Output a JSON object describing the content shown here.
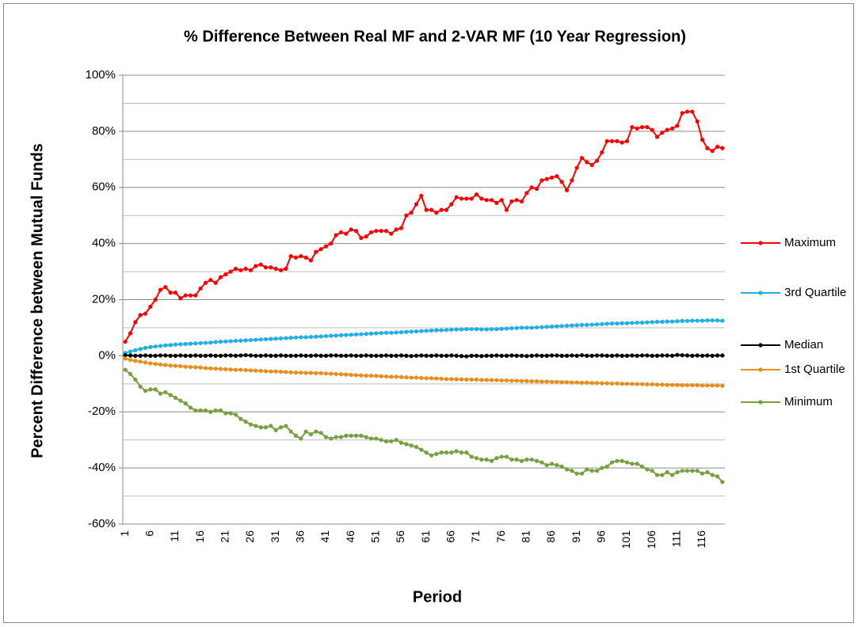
{
  "chart_data": {
    "type": "line",
    "title": "% Difference Between Real MF and 2-VAR MF (10 Year Regression)",
    "x_label": "Period",
    "y_label": "Percent Difference between Mutual Funds",
    "categories": [
      "1",
      null,
      null,
      null,
      null,
      "6",
      null,
      null,
      null,
      null,
      "11",
      null,
      null,
      null,
      null,
      "16",
      null,
      null,
      null,
      null,
      "21",
      null,
      null,
      null,
      null,
      "26",
      null,
      null,
      null,
      null,
      "31",
      null,
      null,
      null,
      null,
      "36",
      null,
      null,
      null,
      null,
      "41",
      null,
      null,
      null,
      null,
      "46",
      null,
      null,
      null,
      null,
      "51",
      null,
      null,
      null,
      null,
      "56",
      null,
      null,
      null,
      null,
      "61",
      null,
      null,
      null,
      null,
      "66",
      null,
      null,
      null,
      null,
      "71",
      null,
      null,
      null,
      null,
      "76",
      null,
      null,
      null,
      null,
      "81",
      null,
      null,
      null,
      null,
      "86",
      null,
      null,
      null,
      null,
      "91",
      null,
      null,
      null,
      null,
      "96",
      null,
      null,
      null,
      null,
      "101",
      null,
      null,
      null,
      null,
      "106",
      null,
      null,
      null,
      null,
      "111",
      null,
      null,
      null,
      null,
      "116",
      null,
      null,
      null,
      null
    ],
    "ylim": [
      -60,
      100
    ],
    "yticks": [
      {
        "value": -60,
        "label": "-60%"
      },
      {
        "value": -40,
        "label": "-40%"
      },
      {
        "value": -20,
        "label": "-20%"
      },
      {
        "value": 0,
        "label": "0%"
      },
      {
        "value": 20,
        "label": "20%"
      },
      {
        "value": 40,
        "label": "40%"
      },
      {
        "value": 60,
        "label": "60%"
      },
      {
        "value": 80,
        "label": "80%"
      },
      {
        "value": 100,
        "label": "100%"
      }
    ],
    "yminor": [
      -50,
      -30,
      -10,
      10,
      30,
      50,
      70,
      90
    ],
    "grid": true,
    "legend": "right",
    "series": [
      {
        "name": "Maximum",
        "color": "#ff0000",
        "values": [
          5,
          8,
          12,
          14.5,
          15,
          17.5,
          20,
          23.5,
          24.5,
          22.5,
          22.5,
          20.5,
          21.5,
          21.5,
          21.5,
          24,
          26,
          27,
          26,
          28,
          29,
          30,
          31,
          30.5,
          31,
          30.5,
          32,
          32.5,
          31.5,
          31.5,
          31,
          30.5,
          31,
          35.5,
          35,
          35.5,
          35,
          34,
          37,
          38,
          39,
          40,
          43,
          44,
          43.5,
          45,
          44.5,
          42,
          42.5,
          44,
          44.5,
          44.5,
          44.5,
          43.5,
          45,
          45.5,
          50,
          51,
          54,
          57,
          52,
          52,
          51,
          52,
          52,
          54,
          56.5,
          56,
          56,
          56,
          57.5,
          56,
          55.5,
          55.5,
          54.5,
          55.5,
          52,
          55,
          55.5,
          55,
          58,
          60,
          59.5,
          62.5,
          63,
          63.5,
          64,
          62,
          59,
          62.5,
          67,
          70.5,
          69,
          68,
          69.5,
          72.5,
          76.5,
          76.5,
          76.5,
          76,
          76.5,
          81.5,
          81,
          81.5,
          81.5,
          80.5,
          78,
          79.5,
          80.5,
          81,
          82,
          86.5,
          87,
          87,
          83.5,
          77,
          74,
          73,
          74.5,
          74
        ]
      },
      {
        "name": "3rd Quartile",
        "color": "#1fb0e8",
        "values": [
          1.0,
          1.5,
          2.0,
          2.4,
          2.8,
          3.1,
          3.3,
          3.5,
          3.7,
          3.8,
          4.0,
          4.1,
          4.2,
          4.3,
          4.4,
          4.5,
          4.6,
          4.7,
          4.9,
          5.0,
          5.1,
          5.2,
          5.3,
          5.4,
          5.5,
          5.6,
          5.7,
          5.8,
          5.9,
          6.0,
          6.1,
          6.2,
          6.3,
          6.4,
          6.5,
          6.6,
          6.6,
          6.7,
          6.8,
          6.9,
          7.0,
          7.1,
          7.2,
          7.3,
          7.4,
          7.5,
          7.6,
          7.7,
          7.8,
          7.9,
          8.0,
          8.1,
          8.2,
          8.2,
          8.3,
          8.4,
          8.5,
          8.6,
          8.7,
          8.8,
          8.9,
          9.0,
          9.1,
          9.1,
          9.2,
          9.3,
          9.4,
          9.4,
          9.5,
          9.5,
          9.5,
          9.4,
          9.4,
          9.5,
          9.5,
          9.6,
          9.7,
          9.8,
          9.9,
          10.0,
          10.0,
          10.0,
          10.1,
          10.2,
          10.3,
          10.4,
          10.5,
          10.6,
          10.7,
          10.8,
          10.9,
          11.0,
          11.0,
          11.1,
          11.2,
          11.3,
          11.4,
          11.5,
          11.5,
          11.6,
          11.6,
          11.7,
          11.8,
          11.8,
          11.9,
          12.0,
          12.1,
          12.1,
          12.2,
          12.2,
          12.3,
          12.4,
          12.4,
          12.5,
          12.5,
          12.5,
          12.6,
          12.6,
          12.6,
          12.5
        ]
      },
      {
        "name": "Median",
        "color": "#000000",
        "values": [
          0.2,
          0.1,
          0,
          0,
          0.1,
          0,
          0,
          0.1,
          0.1,
          0,
          0,
          0.1,
          0,
          0,
          0.1,
          0,
          0,
          0.1,
          0,
          0,
          0.1,
          0.1,
          0,
          0.1,
          0.2,
          0.1,
          0,
          0,
          0.1,
          0,
          0,
          0.1,
          0,
          0,
          0,
          0.1,
          0,
          0,
          0.1,
          0,
          0,
          0.1,
          0.1,
          0,
          0,
          0.1,
          0,
          0,
          0.1,
          0,
          0,
          0,
          0.1,
          0,
          0,
          0.1,
          0,
          -0.1,
          0,
          0.1,
          0,
          0,
          0.1,
          0,
          0,
          0.1,
          0,
          -0.1,
          -0.2,
          0,
          0,
          -0.1,
          0,
          0,
          0.1,
          0,
          0,
          0.1,
          0,
          0,
          -0.1,
          0,
          0.1,
          0,
          0,
          0.1,
          0.1,
          0,
          0,
          0.1,
          0,
          0.2,
          0,
          0,
          0.1,
          0.1,
          0,
          0,
          0.1,
          0,
          0,
          0.1,
          0,
          0.1,
          0.1,
          0,
          0,
          0.1,
          0.1,
          0,
          0.3,
          0.2,
          0.1,
          0,
          0.1,
          0,
          0.1,
          0,
          0.1,
          0.1
        ]
      },
      {
        "name": "1st Quartile",
        "color": "#e88e1e",
        "values": [
          -1.0,
          -1.5,
          -1.8,
          -2.1,
          -2.4,
          -2.7,
          -2.9,
          -3.1,
          -3.3,
          -3.5,
          -3.6,
          -3.7,
          -3.9,
          -4.0,
          -4.1,
          -4.2,
          -4.4,
          -4.5,
          -4.6,
          -4.7,
          -4.8,
          -4.9,
          -5.0,
          -5.0,
          -5.1,
          -5.2,
          -5.3,
          -5.4,
          -5.5,
          -5.6,
          -5.6,
          -5.7,
          -5.8,
          -5.9,
          -6.0,
          -6.0,
          -6.1,
          -6.1,
          -6.2,
          -6.2,
          -6.3,
          -6.4,
          -6.5,
          -6.6,
          -6.7,
          -6.8,
          -6.9,
          -7.0,
          -7.1,
          -7.1,
          -7.2,
          -7.3,
          -7.4,
          -7.5,
          -7.5,
          -7.6,
          -7.7,
          -7.8,
          -7.8,
          -7.9,
          -8.0,
          -8.0,
          -8.1,
          -8.2,
          -8.3,
          -8.3,
          -8.4,
          -8.4,
          -8.5,
          -8.5,
          -8.5,
          -8.6,
          -8.6,
          -8.7,
          -8.7,
          -8.8,
          -8.8,
          -8.9,
          -8.9,
          -9.0,
          -9.0,
          -9.1,
          -9.1,
          -9.2,
          -9.2,
          -9.3,
          -9.3,
          -9.4,
          -9.4,
          -9.5,
          -9.5,
          -9.6,
          -9.6,
          -9.7,
          -9.7,
          -9.8,
          -9.8,
          -9.9,
          -9.9,
          -10.0,
          -10.0,
          -10.0,
          -10.1,
          -10.1,
          -10.2,
          -10.2,
          -10.3,
          -10.3,
          -10.4,
          -10.4,
          -10.4,
          -10.5,
          -10.5,
          -10.5,
          -10.5,
          -10.6,
          -10.6,
          -10.6,
          -10.6,
          -10.7
        ]
      },
      {
        "name": "Minimum",
        "color": "#77a040",
        "values": [
          -5,
          -6.5,
          -8.5,
          -11,
          -12.5,
          -12,
          -12,
          -13.5,
          -13,
          -14,
          -15,
          -16,
          -17,
          -18.5,
          -19.5,
          -19.5,
          -19.5,
          -20,
          -19.5,
          -19.5,
          -20.5,
          -20.5,
          -21,
          -22.5,
          -23.5,
          -24.5,
          -25,
          -25.5,
          -25.5,
          -25,
          -26.5,
          -25.5,
          -25,
          -27,
          -28.5,
          -29.5,
          -27,
          -28,
          -27,
          -27.5,
          -29,
          -29.5,
          -29,
          -29,
          -28.5,
          -28.5,
          -28.5,
          -28.5,
          -29,
          -29.5,
          -29.5,
          -30,
          -30.5,
          -30.5,
          -30,
          -31,
          -31.5,
          -32,
          -32.5,
          -33.5,
          -34.5,
          -35.5,
          -35,
          -34.5,
          -34.5,
          -34.5,
          -34,
          -34.5,
          -34.5,
          -36,
          -36.5,
          -37,
          -37,
          -37.5,
          -36.5,
          -36,
          -36,
          -37,
          -37,
          -37.5,
          -37,
          -37,
          -37.5,
          -38,
          -39,
          -38.5,
          -39,
          -39.5,
          -40.5,
          -41,
          -42,
          -42,
          -40.5,
          -41,
          -41,
          -40,
          -39.5,
          -38,
          -37.5,
          -37.5,
          -38,
          -38.5,
          -38.5,
          -39.5,
          -40.5,
          -41,
          -42.5,
          -42.5,
          -41.5,
          -42.5,
          -41.5,
          -41,
          -41,
          -41,
          -41,
          -42,
          -41.5,
          -42.5,
          -43,
          -45
        ]
      }
    ]
  }
}
